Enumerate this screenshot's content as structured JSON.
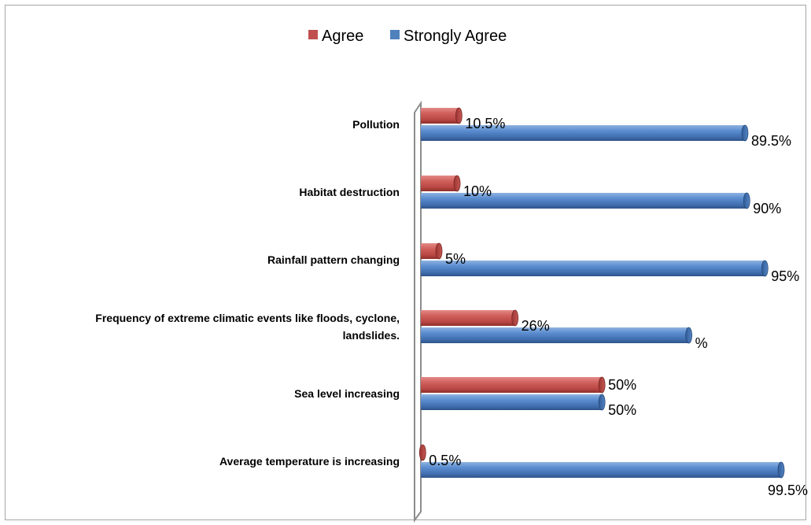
{
  "chart_data": {
    "type": "bar",
    "orientation": "horizontal",
    "title": "",
    "xlabel": "",
    "ylabel": "",
    "categories": [
      [
        "Pollution"
      ],
      [
        "Habitat destruction"
      ],
      [
        "Rainfall pattern changing"
      ],
      [
        "Frequency of extreme climatic events like floods, cyclone,",
        "landslides."
      ],
      [
        "Sea level increasing"
      ],
      [
        "Average temperature is increasing"
      ]
    ],
    "series": [
      {
        "name": "Agree",
        "color": "#c0504d",
        "values": [
          10.5,
          10,
          5,
          26,
          50,
          0.5
        ],
        "labels": [
          "10.5%",
          "10%",
          "5%",
          "26%",
          "50%",
          "0.5%"
        ]
      },
      {
        "name": "Strongly Agree",
        "color": "#4f81bd",
        "values": [
          89.5,
          90,
          95,
          74,
          50,
          99.5
        ],
        "labels": [
          "89.5%",
          "90%",
          "95%",
          "%",
          "50%",
          "99.5%"
        ]
      }
    ],
    "xlim": [
      0,
      100
    ],
    "grid": false,
    "legend": "top-center",
    "style": "3d-cylinder"
  }
}
